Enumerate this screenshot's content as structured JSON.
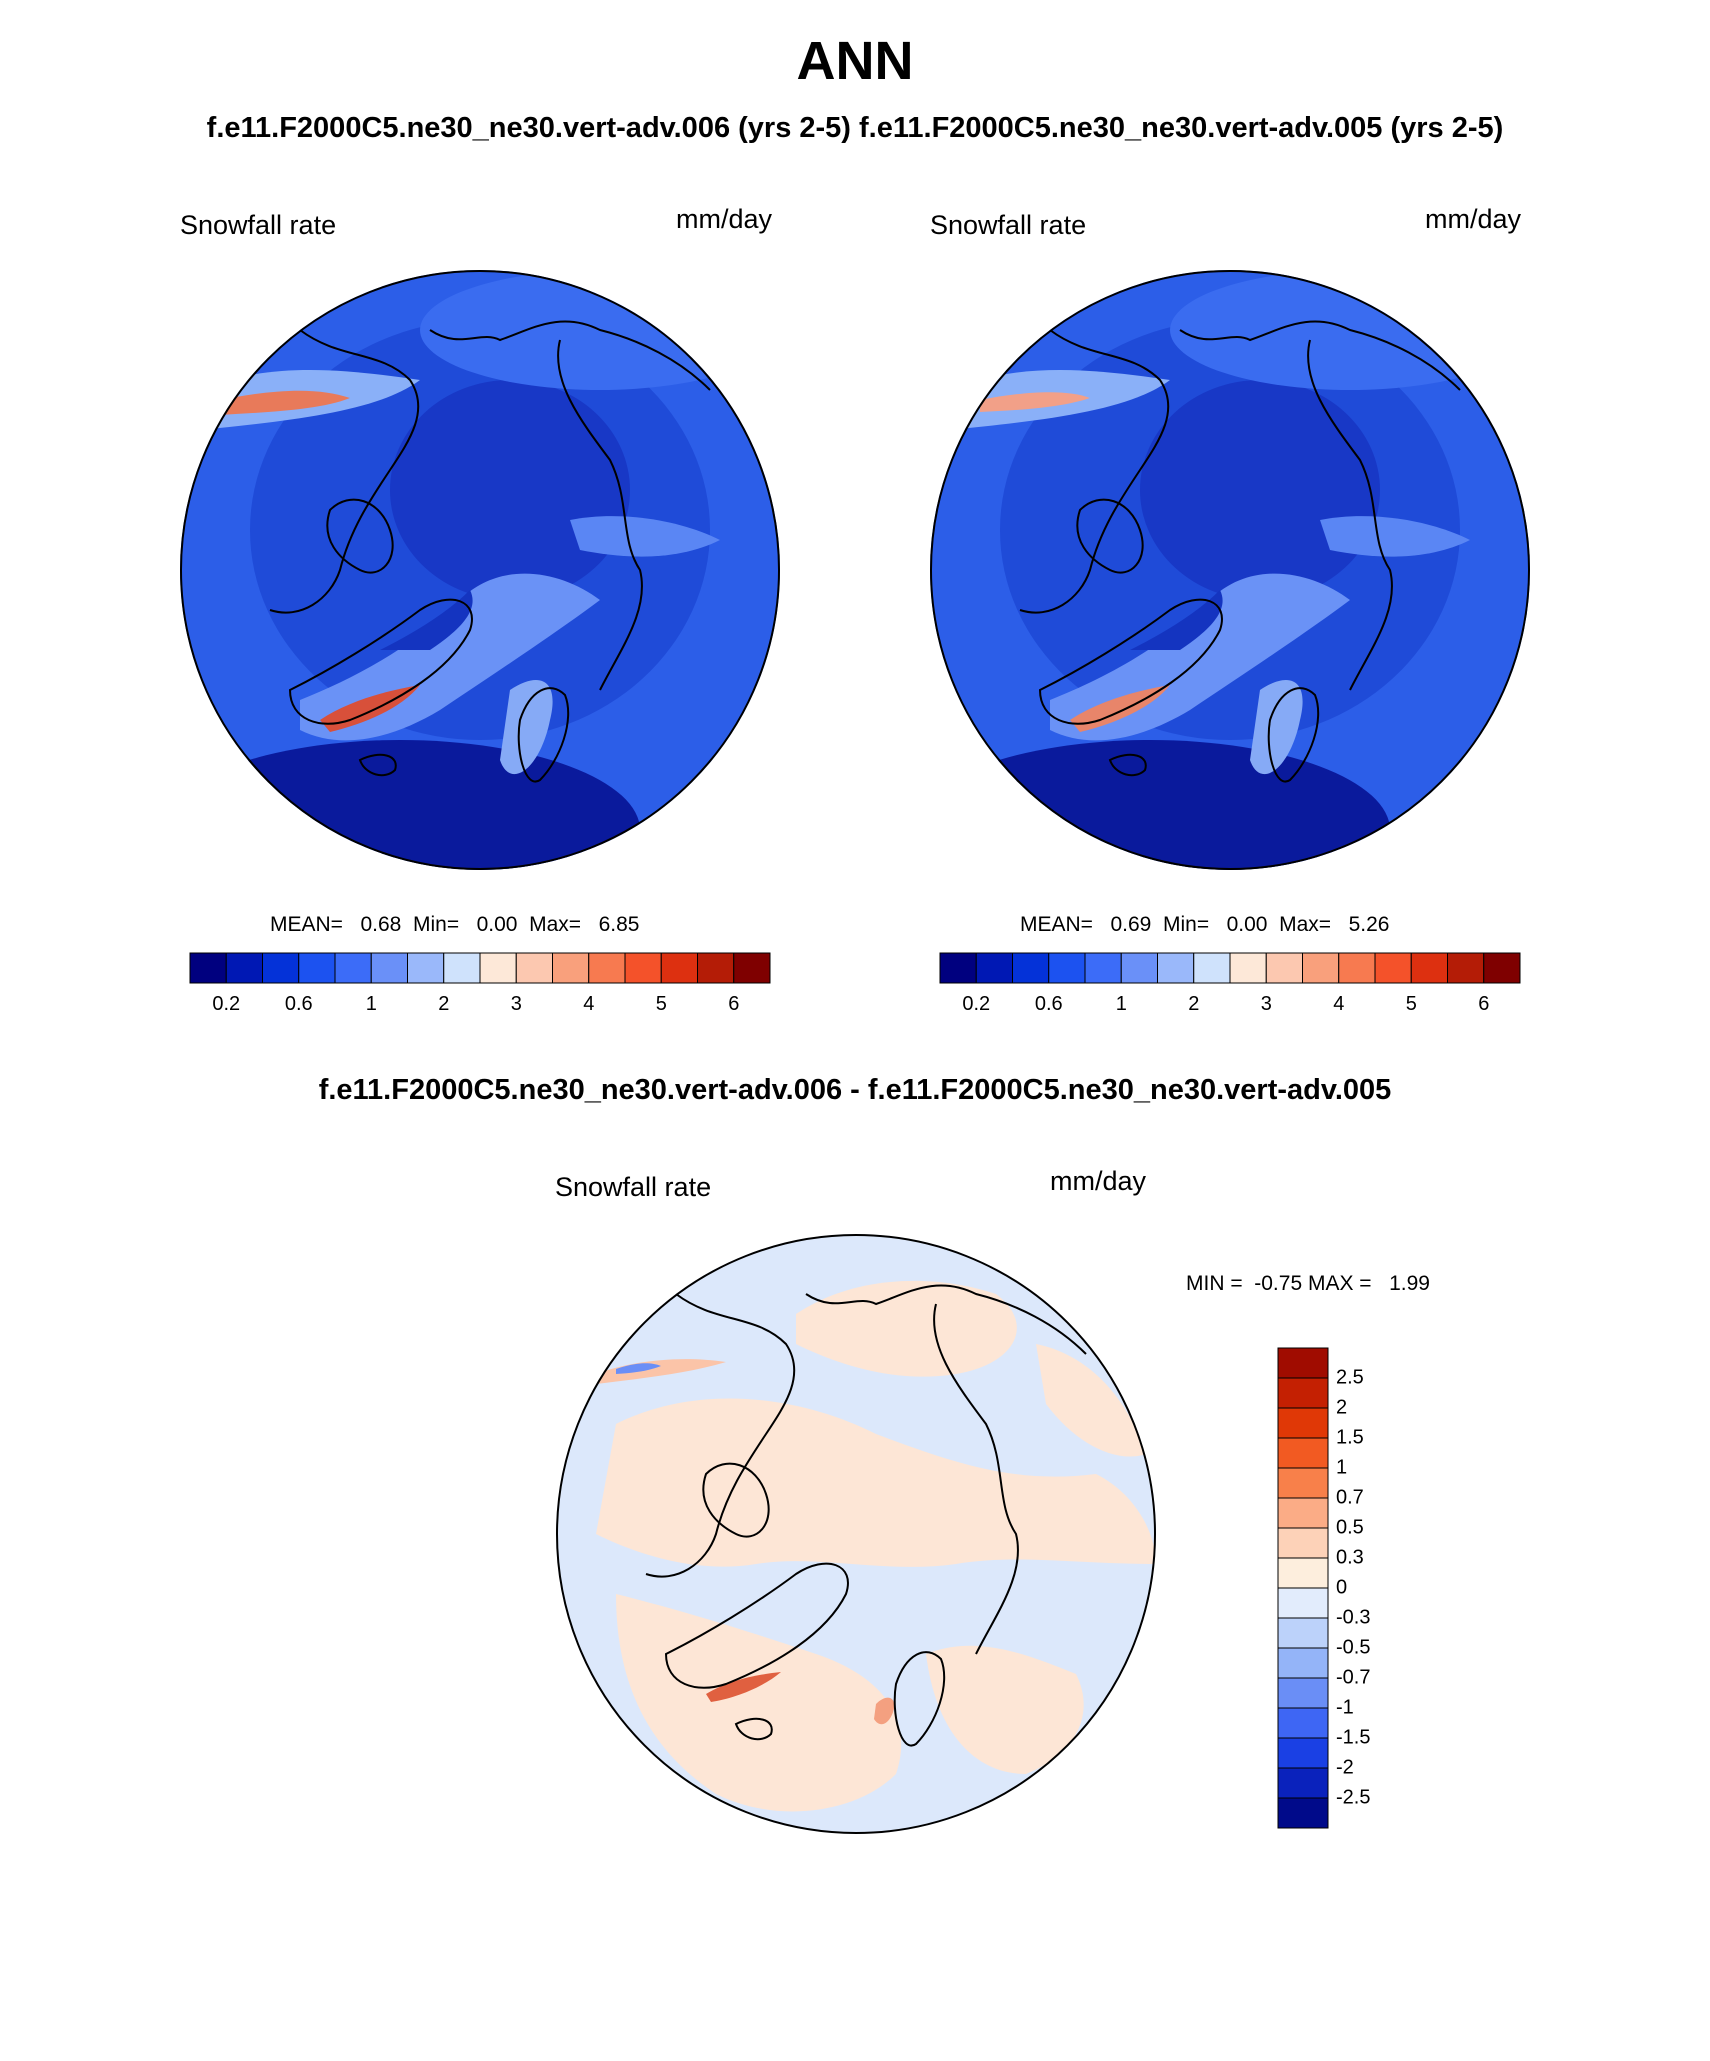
{
  "figure": {
    "title": "ANN",
    "subtitle": "f.e11.F2000C5.ne30_ne30.vert-adv.006 (yrs 2-5)  f.e11.F2000C5.ne30_ne30.vert-adv.005 (yrs 2-5)",
    "diff_title": "f.e11.F2000C5.ne30_ne30.vert-adv.006 - f.e11.F2000C5.ne30_ne30.vert-adv.005"
  },
  "panels": [
    {
      "variable": "Snowfall rate",
      "units": "mm/day",
      "stats": "MEAN=   0.68  Min=   0.00  Max=   6.85"
    },
    {
      "variable": "Snowfall rate",
      "units": "mm/day",
      "stats": "MEAN=   0.69  Min=   0.00  Max=   5.26"
    }
  ],
  "diff_panel": {
    "variable": "Snowfall rate",
    "units": "mm/day",
    "stats": "MIN =  -0.75 MAX =   1.99"
  },
  "colorbar_abs": {
    "colors": [
      "#00007f",
      "#0018b4",
      "#0432d8",
      "#1c52f0",
      "#3c6cf8",
      "#6a90f8",
      "#9ab8fa",
      "#cfe2fc",
      "#fde8d8",
      "#fcc8b0",
      "#f9a07c",
      "#f77a50",
      "#f4522a",
      "#dd3010",
      "#b41c06",
      "#7f0000"
    ],
    "labels": [
      "0.2",
      "0.6",
      "1",
      "2",
      "3",
      "4",
      "5",
      "6"
    ]
  },
  "colorbar_diff": {
    "colors": [
      "#a00c00",
      "#c42002",
      "#e03806",
      "#f25a22",
      "#f8804a",
      "#fbac86",
      "#fdd2b8",
      "#fdeedd",
      "#e2ecfc",
      "#bcd2fa",
      "#94b4f8",
      "#6a8ef6",
      "#3e66f4",
      "#1a40e4",
      "#0a22bc",
      "#000a8a"
    ],
    "labels": [
      "2.5",
      "2",
      "1.5",
      "1",
      "0.7",
      "0.5",
      "0.3",
      "0",
      "-0.3",
      "-0.5",
      "-0.7",
      "-1",
      "-1.5",
      "-2",
      "-2.5"
    ]
  }
}
